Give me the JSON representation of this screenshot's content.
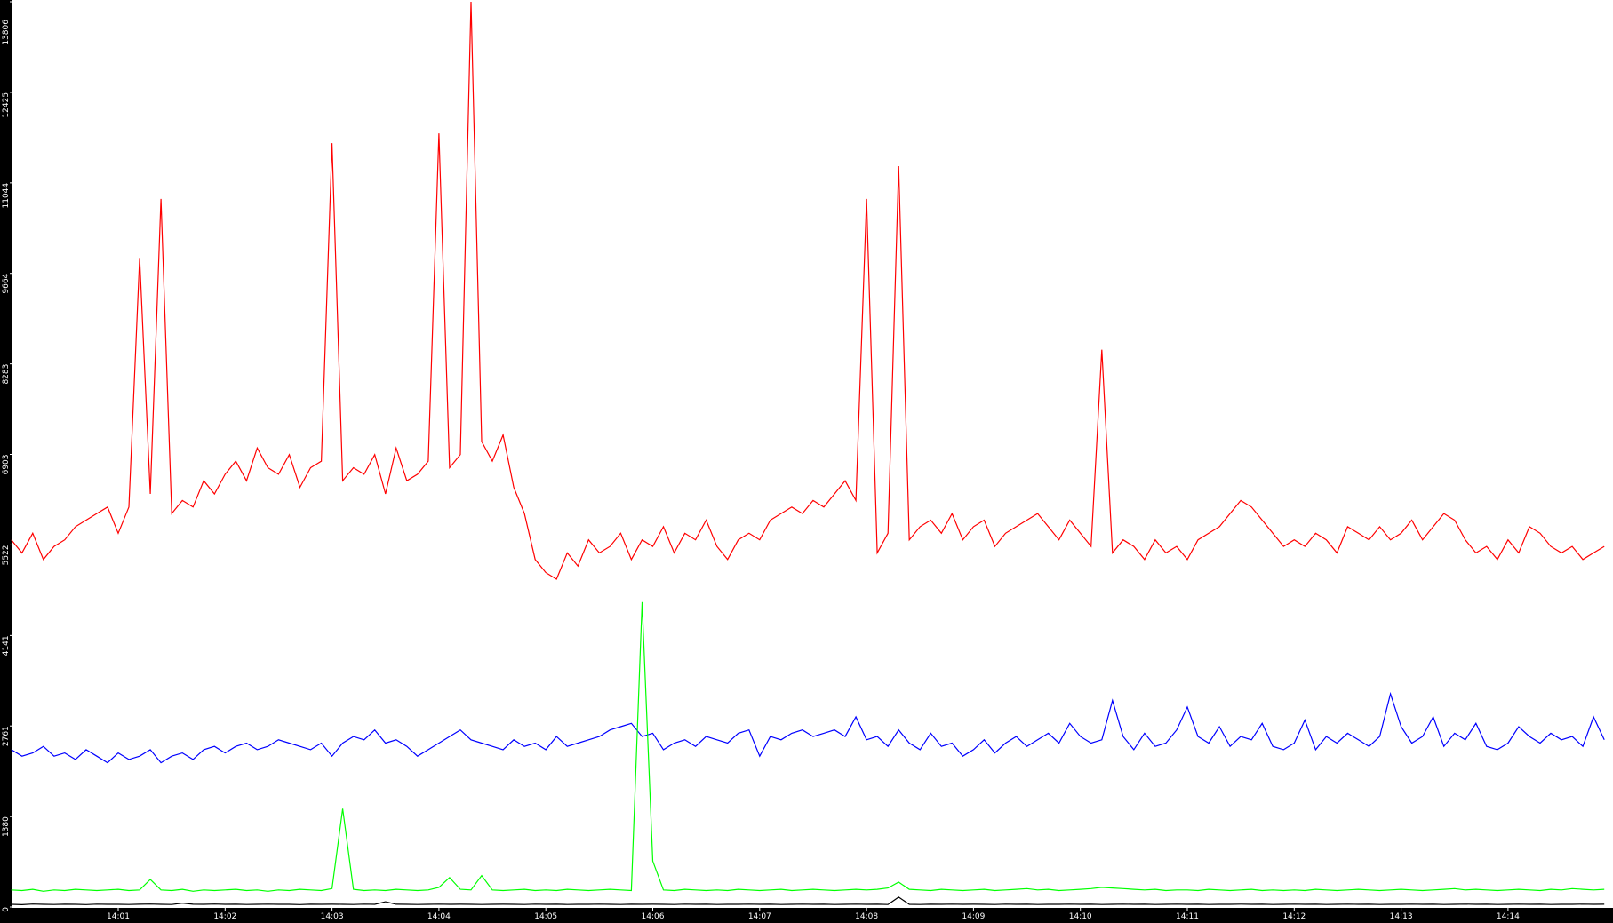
{
  "chart_data": {
    "type": "line",
    "categories": [
      null,
      null,
      null,
      null,
      null,
      null,
      null,
      null,
      null,
      null,
      "14:01",
      null,
      null,
      null,
      null,
      null,
      null,
      null,
      null,
      null,
      "14:02",
      null,
      null,
      null,
      null,
      null,
      null,
      null,
      null,
      null,
      "14:03",
      null,
      null,
      null,
      null,
      null,
      null,
      null,
      null,
      null,
      "14:04",
      null,
      null,
      null,
      null,
      null,
      null,
      null,
      null,
      null,
      "14:05",
      null,
      null,
      null,
      null,
      null,
      null,
      null,
      null,
      null,
      "14:06",
      null,
      null,
      null,
      null,
      null,
      null,
      null,
      null,
      null,
      "14:07",
      null,
      null,
      null,
      null,
      null,
      null,
      null,
      null,
      null,
      "14:08",
      null,
      null,
      null,
      null,
      null,
      null,
      null,
      null,
      null,
      "14:09",
      null,
      null,
      null,
      null,
      null,
      null,
      null,
      null,
      null,
      "14:10",
      null,
      null,
      null,
      null,
      null,
      null,
      null,
      null,
      null,
      "14:11",
      null,
      null,
      null,
      null,
      null,
      null,
      null,
      null,
      null,
      "14:12",
      null,
      null,
      null,
      null,
      null,
      null,
      null,
      null,
      null,
      "14:13",
      null,
      null,
      null,
      null,
      null,
      null,
      null,
      null,
      null,
      "14:14",
      null,
      null,
      null,
      null,
      null,
      null,
      null,
      null,
      null
    ],
    "series": [
      {
        "color": "#ff0000",
        "values": [
          5600,
          5400,
          5700,
          5300,
          5500,
          5600,
          5800,
          5900,
          6000,
          6100,
          5700,
          6100,
          9900,
          6300,
          10800,
          6000,
          6200,
          6100,
          6500,
          6300,
          6600,
          6800,
          6500,
          7000,
          6700,
          6600,
          6900,
          6400,
          6700,
          6800,
          11650,
          6500,
          6700,
          6600,
          6900,
          6300,
          7000,
          6500,
          6600,
          6800,
          11800,
          6700,
          6900,
          13806,
          7100,
          6800,
          7200,
          6400,
          6000,
          5300,
          5100,
          5000,
          5400,
          5200,
          5600,
          5400,
          5500,
          5700,
          5300,
          5600,
          5500,
          5800,
          5400,
          5700,
          5600,
          5900,
          5500,
          5300,
          5600,
          5700,
          5600,
          5900,
          6000,
          6100,
          6000,
          6200,
          6100,
          6300,
          6500,
          6200,
          10800,
          5400,
          5700,
          11300,
          5600,
          5800,
          5900,
          5700,
          6000,
          5600,
          5800,
          5900,
          5500,
          5700,
          5800,
          5900,
          6000,
          5800,
          5600,
          5900,
          5700,
          5500,
          8500,
          5400,
          5600,
          5500,
          5300,
          5600,
          5400,
          5500,
          5300,
          5600,
          5700,
          5800,
          6000,
          6200,
          6100,
          5900,
          5700,
          5500,
          5600,
          5500,
          5700,
          5600,
          5400,
          5800,
          5700,
          5600,
          5800,
          5600,
          5700,
          5900,
          5600,
          5800,
          6000,
          5900,
          5600,
          5400,
          5500,
          5300,
          5600,
          5400,
          5800,
          5700,
          5500,
          5400,
          5500,
          5300,
          5400,
          5500
        ]
      },
      {
        "color": "#0000ff",
        "values": [
          2400,
          2300,
          2350,
          2450,
          2300,
          2350,
          2250,
          2400,
          2300,
          2200,
          2350,
          2250,
          2300,
          2400,
          2200,
          2300,
          2350,
          2250,
          2400,
          2450,
          2350,
          2450,
          2500,
          2400,
          2450,
          2550,
          2500,
          2450,
          2400,
          2500,
          2300,
          2500,
          2600,
          2550,
          2700,
          2500,
          2550,
          2450,
          2300,
          2400,
          2500,
          2600,
          2700,
          2550,
          2500,
          2450,
          2400,
          2550,
          2450,
          2500,
          2400,
          2600,
          2450,
          2500,
          2550,
          2600,
          2700,
          2750,
          2800,
          2600,
          2650,
          2400,
          2500,
          2550,
          2450,
          2600,
          2550,
          2500,
          2650,
          2700,
          2300,
          2600,
          2550,
          2650,
          2700,
          2600,
          2650,
          2700,
          2600,
          2900,
          2550,
          2600,
          2450,
          2700,
          2500,
          2400,
          2650,
          2450,
          2500,
          2300,
          2400,
          2550,
          2350,
          2500,
          2600,
          2450,
          2550,
          2650,
          2500,
          2800,
          2600,
          2500,
          2550,
          3150,
          2600,
          2400,
          2650,
          2450,
          2500,
          2700,
          3050,
          2600,
          2500,
          2750,
          2450,
          2600,
          2550,
          2800,
          2450,
          2400,
          2500,
          2850,
          2400,
          2600,
          2500,
          2650,
          2550,
          2450,
          2600,
          3250,
          2750,
          2500,
          2600,
          2900,
          2450,
          2650,
          2550,
          2800,
          2450,
          2400,
          2500,
          2750,
          2600,
          2500,
          2650,
          2550,
          2600,
          2450,
          2900,
          2550
        ]
      },
      {
        "color": "#00ff00",
        "values": [
          260,
          250,
          270,
          240,
          260,
          250,
          270,
          260,
          250,
          260,
          270,
          250,
          260,
          420,
          260,
          250,
          270,
          240,
          260,
          250,
          260,
          270,
          250,
          260,
          240,
          260,
          250,
          270,
          260,
          250,
          280,
          1500,
          270,
          250,
          260,
          250,
          270,
          260,
          250,
          260,
          300,
          450,
          270,
          260,
          480,
          260,
          250,
          260,
          270,
          250,
          260,
          250,
          270,
          260,
          250,
          260,
          270,
          260,
          250,
          4650,
          700,
          260,
          250,
          270,
          260,
          250,
          260,
          250,
          270,
          260,
          250,
          260,
          270,
          250,
          260,
          270,
          260,
          250,
          260,
          270,
          260,
          270,
          290,
          380,
          270,
          260,
          250,
          270,
          260,
          250,
          260,
          270,
          250,
          260,
          270,
          280,
          260,
          270,
          250,
          260,
          270,
          280,
          300,
          290,
          280,
          270,
          260,
          270,
          250,
          260,
          260,
          250,
          270,
          260,
          250,
          260,
          270,
          250,
          260,
          250,
          260,
          250,
          270,
          260,
          250,
          260,
          270,
          260,
          250,
          260,
          270,
          260,
          250,
          260,
          270,
          280,
          260,
          270,
          260,
          250,
          260,
          270,
          260,
          250,
          270,
          260,
          280,
          270,
          260,
          270
        ]
      },
      {
        "color": "#000000",
        "values": [
          40,
          35,
          45,
          40,
          38,
          42,
          40,
          36,
          44,
          40,
          40,
          38,
          42,
          45,
          40,
          38,
          60,
          42,
          40,
          45,
          40,
          42,
          38,
          40,
          44,
          40,
          40,
          36,
          42,
          40,
          42,
          40,
          38,
          44,
          40,
          80,
          42,
          40,
          38,
          40,
          44,
          40,
          42,
          40,
          38,
          40,
          42,
          40,
          38,
          44,
          40,
          42,
          38,
          40,
          40,
          44,
          40,
          38,
          42,
          40,
          42,
          40,
          38,
          44,
          40,
          42,
          38,
          40,
          40,
          44,
          40,
          42,
          38,
          40,
          44,
          40,
          42,
          38,
          40,
          44,
          40,
          42,
          38,
          150,
          40,
          38,
          42,
          40,
          44,
          40,
          42,
          40,
          38,
          44,
          40,
          42,
          38,
          40,
          40,
          44,
          40,
          42,
          38,
          40,
          44,
          40,
          42,
          38,
          40,
          44,
          40,
          42,
          38,
          40,
          40,
          44,
          40,
          42,
          38,
          40,
          44,
          40,
          42,
          38,
          40,
          44,
          40,
          42,
          38,
          40,
          40,
          44,
          40,
          42,
          38,
          40,
          44,
          40,
          42,
          38,
          40,
          44,
          40,
          42,
          38,
          40,
          40,
          44,
          40,
          42
        ]
      }
    ],
    "ylim": [
      0,
      13806
    ],
    "yticks": [
      0,
      1380,
      2761,
      4141,
      5522,
      6903,
      8283,
      9664,
      11044,
      12425,
      13806
    ]
  }
}
